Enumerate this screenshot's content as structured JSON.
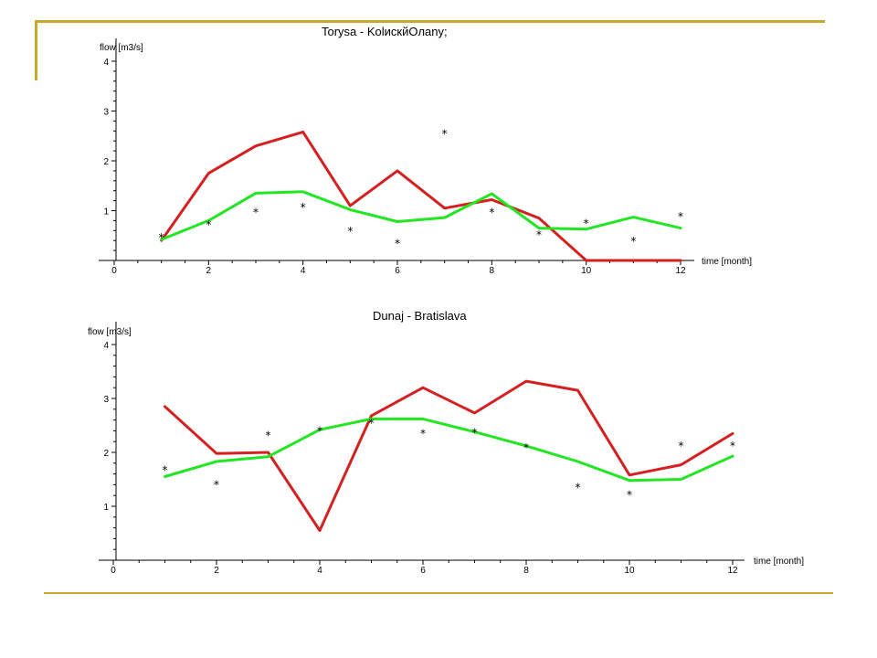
{
  "colors": {
    "frame": "#c8a82a",
    "red": "#d42020",
    "green": "#22e622"
  },
  "chart_data": [
    {
      "type": "line",
      "title": "Torysa - KolискйOлany;",
      "xlabel": "time [month]",
      "ylabel": "flow [m3/s]",
      "xlim": [
        0,
        12
      ],
      "ylim": [
        0,
        4
      ],
      "xticks": [
        0,
        2,
        4,
        6,
        8,
        10,
        12
      ],
      "yticks": [
        1,
        2,
        3,
        4
      ],
      "legend": "none",
      "series": [
        {
          "name": "",
          "style": "line",
          "color": "#d42020",
          "x": [
            1,
            2,
            3,
            4,
            5,
            6,
            7,
            8,
            9,
            10,
            11,
            12
          ],
          "values": [
            0.4,
            1.75,
            2.3,
            2.58,
            1.1,
            1.8,
            1.05,
            1.22,
            0.85,
            0.0,
            0.0,
            0.0
          ]
        },
        {
          "name": "",
          "style": "line",
          "color": "#22e622",
          "x": [
            1,
            2,
            3,
            4,
            5,
            6,
            7,
            8,
            9,
            10,
            11,
            12
          ],
          "values": [
            0.42,
            0.8,
            1.35,
            1.38,
            1.02,
            0.78,
            0.86,
            1.34,
            0.65,
            0.63,
            0.87,
            0.65
          ]
        },
        {
          "name": "",
          "style": "points",
          "marker": "*",
          "x": [
            1,
            2,
            3,
            4,
            5,
            6,
            7,
            8,
            9,
            10,
            11,
            12
          ],
          "values": [
            0.5,
            0.75,
            1.0,
            1.1,
            0.62,
            0.38,
            2.58,
            1.0,
            0.55,
            0.78,
            0.42,
            0.92
          ]
        }
      ]
    },
    {
      "type": "line",
      "title": "Dunaj - Bratislava",
      "xlabel": "time [month]",
      "ylabel": "flow [m3/s]",
      "xlim": [
        0,
        12
      ],
      "ylim": [
        0,
        4
      ],
      "xticks": [
        0,
        2,
        4,
        6,
        8,
        10,
        12
      ],
      "yticks": [
        1,
        2,
        3,
        4
      ],
      "legend": "none",
      "series": [
        {
          "name": "",
          "style": "line",
          "color": "#d42020",
          "x": [
            1,
            2,
            3,
            4,
            5,
            6,
            7,
            8,
            9,
            10,
            11,
            12
          ],
          "values": [
            2.85,
            1.98,
            2.0,
            0.55,
            2.68,
            3.2,
            2.73,
            3.32,
            3.15,
            1.58,
            1.77,
            2.35
          ]
        },
        {
          "name": "",
          "style": "line",
          "color": "#22e622",
          "x": [
            1,
            2,
            3,
            4,
            5,
            6,
            7,
            8,
            9,
            10,
            11,
            12
          ],
          "values": [
            1.55,
            1.83,
            1.92,
            2.42,
            2.62,
            2.62,
            2.38,
            2.12,
            1.83,
            1.48,
            1.5,
            1.93
          ]
        },
        {
          "name": "",
          "style": "points",
          "marker": "*",
          "x": [
            1,
            2,
            3,
            4,
            5,
            6,
            7,
            8,
            9,
            10,
            11,
            12
          ],
          "values": [
            1.7,
            1.43,
            2.35,
            2.43,
            2.58,
            2.38,
            2.4,
            2.12,
            1.38,
            1.25,
            2.15,
            2.15
          ]
        }
      ]
    }
  ]
}
